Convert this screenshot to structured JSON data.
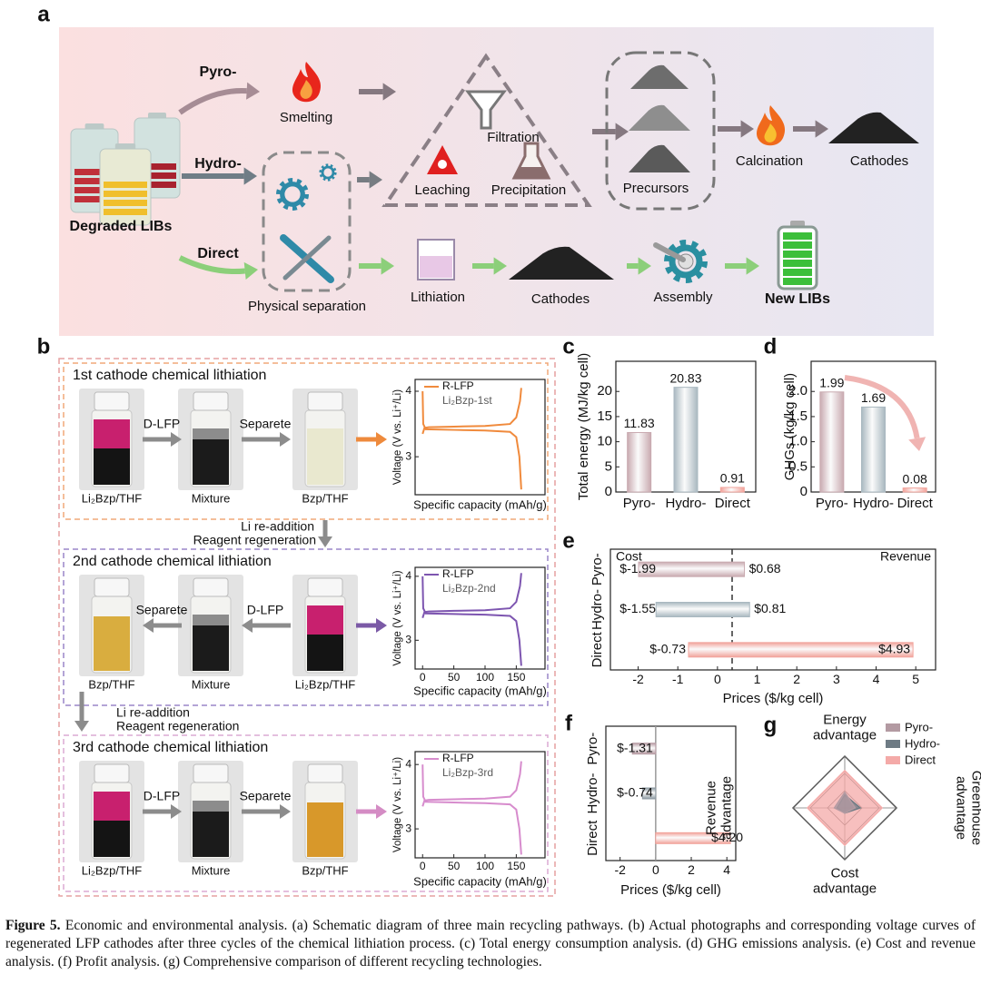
{
  "panel_a": {
    "label": "a",
    "pathways": [
      "Pyro-",
      "Hydro-",
      "Direct"
    ],
    "source": "Degraded LIBs",
    "pyro_steps": [
      "Smelting"
    ],
    "hydro_steps": [
      "Filtration",
      "Leaching",
      "Precipitation",
      "Precursors",
      "Calcination",
      "Cathodes"
    ],
    "shared_step": "Physical separation",
    "direct_steps": [
      "Lithiation",
      "Cathodes",
      "Assembly"
    ],
    "product": "New LIBs"
  },
  "panel_b": {
    "label": "b",
    "cycles": [
      {
        "title": "1st cathode chemical lithiation",
        "vials": [
          "Li₂Bzp/THF",
          "Mixture",
          "Bzp/THF"
        ],
        "arrows": [
          "D-LFP",
          "Separete"
        ]
      },
      {
        "title": "2nd cathode chemical lithiation",
        "vials": [
          "Bzp/THF",
          "Mixture",
          "Li₂Bzp/THF"
        ],
        "arrows": [
          "Separete",
          "D-LFP"
        ]
      },
      {
        "title": "3rd cathode chemical lithiation",
        "vials": [
          "Li₂Bzp/THF",
          "Mixture",
          "Bzp/THF"
        ],
        "arrows": [
          "D-LFP",
          "Separete"
        ]
      }
    ],
    "regeneration": [
      [
        "Li re-addition",
        "Reagent regeneration"
      ],
      [
        "Li re-addition",
        "Reagent regeneration"
      ]
    ]
  },
  "chart_data": [
    {
      "type": "line",
      "xlabel": "Specific capacity (mAh/g)",
      "ylabel": "Voltage (V vs. Li⁺/Li)",
      "xlim": [
        -12,
        196
      ],
      "ylim": [
        2.42,
        4.18
      ],
      "yticks": [
        3,
        4
      ],
      "color": "#f08a3c",
      "series": [
        {
          "name": "R-LFP",
          "x": [
            0,
            3,
            10,
            50,
            100,
            140,
            150,
            156,
            158
          ],
          "values": [
            3.35,
            3.44,
            3.45,
            3.46,
            3.47,
            3.5,
            3.6,
            3.85,
            4.05
          ]
        },
        {
          "name": "Li₂Bzp-1st",
          "x": [
            0,
            1,
            5,
            50,
            100,
            140,
            150,
            155,
            158
          ],
          "values": [
            4.0,
            3.5,
            3.42,
            3.41,
            3.4,
            3.38,
            3.3,
            3.0,
            2.5
          ]
        }
      ]
    },
    {
      "type": "line",
      "xlabel": "Specific capacity (mAh/g)",
      "ylabel": "Voltage (V vs. Li⁺/Li)",
      "xlim": [
        -12,
        196
      ],
      "ylim": [
        2.55,
        4.14
      ],
      "xticks": [
        0,
        50,
        100,
        150
      ],
      "yticks": [
        3,
        4
      ],
      "color": "#7d55b0",
      "series": [
        {
          "name": "R-LFP",
          "x": [
            0,
            3,
            10,
            50,
            100,
            140,
            150,
            156,
            158
          ],
          "values": [
            3.35,
            3.44,
            3.45,
            3.46,
            3.47,
            3.5,
            3.6,
            3.85,
            4.05
          ]
        },
        {
          "name": "Li₂Bzp-2nd",
          "x": [
            0,
            1,
            5,
            50,
            100,
            140,
            150,
            155,
            158
          ],
          "values": [
            4.0,
            3.5,
            3.42,
            3.41,
            3.4,
            3.38,
            3.3,
            3.0,
            2.6
          ]
        }
      ]
    },
    {
      "type": "line",
      "xlabel": "Specific capacity (mAh/g)",
      "ylabel": "Voltage (V vs. Li⁺/Li)",
      "xlim": [
        -12,
        196
      ],
      "ylim": [
        2.55,
        4.2
      ],
      "xticks": [
        0,
        50,
        100,
        150
      ],
      "yticks": [
        3,
        4
      ],
      "color": "#d78ccd",
      "series": [
        {
          "name": "R-LFP",
          "x": [
            0,
            3,
            10,
            50,
            100,
            140,
            150,
            156,
            158
          ],
          "values": [
            3.35,
            3.44,
            3.45,
            3.46,
            3.47,
            3.5,
            3.6,
            3.85,
            4.05
          ]
        },
        {
          "name": "Li₂Bzp-3rd",
          "x": [
            0,
            1,
            5,
            50,
            100,
            140,
            150,
            155,
            158
          ],
          "values": [
            4.0,
            3.5,
            3.42,
            3.41,
            3.4,
            3.38,
            3.3,
            3.0,
            2.6
          ]
        }
      ]
    },
    {
      "type": "bar",
      "label": "c",
      "ylabel": "Total energy (MJ/kg cell)",
      "categories": [
        "Pyro-",
        "Hydro-",
        "Direct"
      ],
      "values": [
        11.83,
        20.83,
        0.91
      ],
      "colors": [
        "#c9aab0",
        "#a9b8c0",
        "#f2a49c"
      ],
      "ylim": [
        0,
        26
      ],
      "yticks": [
        0,
        5,
        10,
        15,
        20
      ]
    },
    {
      "type": "bar",
      "label": "d",
      "ylabel": "GHGs (kg/kg cell)",
      "categories": [
        "Pyro-",
        "Hydro-",
        "Direct"
      ],
      "values": [
        1.99,
        1.69,
        0.08
      ],
      "colors": [
        "#c9aab0",
        "#a9b8c0",
        "#f2a49c"
      ],
      "ylim": [
        0,
        2.6
      ],
      "yticks": [
        0,
        0.5,
        {
          "value": 1,
          "label": "1.0"
        },
        1.5,
        {
          "value": 2,
          "label": "2.0"
        }
      ]
    },
    {
      "type": "floating_bar",
      "label": "e",
      "xlabel": "Prices ($/kg cell)",
      "categories": [
        "Pyro-",
        "Hydro-",
        "Direct"
      ],
      "colors": [
        "#c9aab0",
        "#a9b8c0",
        "#f2a49c"
      ],
      "series": [
        {
          "name": "Cost",
          "values": [
            -1.99,
            -1.55,
            -0.73
          ],
          "value_labels": [
            "$-1.99",
            "$-1.55",
            "$-0.73"
          ]
        },
        {
          "name": "Revenue",
          "values": [
            0.68,
            0.81,
            4.93
          ],
          "value_labels": [
            "$0.68",
            "$0.81",
            "$4.93"
          ]
        }
      ],
      "xlim": [
        -2.7,
        5.5
      ],
      "xticks": [
        -2,
        -1,
        0,
        1,
        2,
        3,
        4,
        5
      ]
    },
    {
      "type": "hbar",
      "label": "f",
      "xlabel": "Prices ($/kg cell)",
      "categories": [
        "Pyro-",
        "Hydro-",
        "Direct"
      ],
      "colors": [
        "#b89ca4",
        "#8e9ba3",
        "#f2a49c"
      ],
      "values": [
        -1.31,
        -0.74,
        4.2
      ],
      "value_labels": [
        "$-1.31",
        "$-0.74",
        "$4.20"
      ],
      "xlim": [
        -2.8,
        4.5
      ],
      "xticks": [
        -2,
        0,
        2,
        4
      ]
    },
    {
      "type": "radar",
      "label": "g",
      "axes": [
        "Energy advantage",
        "Greenhouse advantage",
        "Cost advantage",
        "Revenue advantage"
      ],
      "rlim": [
        0,
        1
      ],
      "series": [
        {
          "name": "Pyro-",
          "color": "#b39aa2",
          "values": [
            0.3,
            0.2,
            0.1,
            0.2
          ]
        },
        {
          "name": "Hydro-",
          "color": "#6e7b84",
          "values": [
            0.25,
            0.3,
            0.1,
            0.15
          ]
        },
        {
          "name": "Direct",
          "color": "#f4aaa8",
          "values": [
            0.72,
            0.72,
            0.72,
            0.72
          ]
        }
      ]
    }
  ],
  "caption": {
    "label": "Figure 5.",
    "text": "Economic and environmental analysis. (a) Schematic diagram of three main recycling pathways. (b) Actual photographs and corresponding voltage curves of regenerated LFP cathodes after three cycles of the chemical lithiation process. (c) Total energy consumption analysis. (d) GHG emissions analysis. (e) Cost and revenue analysis. (f) Profit analysis. (g) Comprehensive comparison of different recycling technologies."
  }
}
